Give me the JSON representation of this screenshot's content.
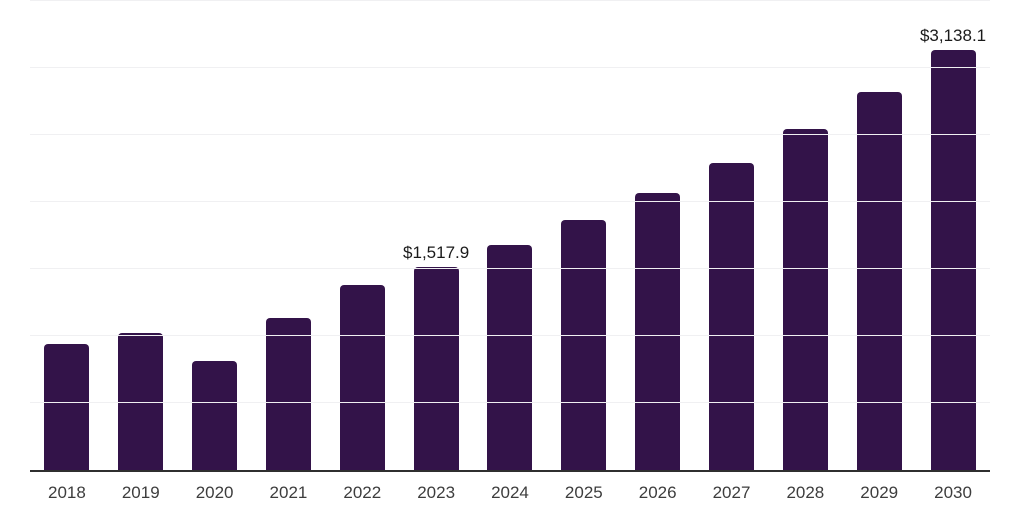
{
  "chart_data": {
    "type": "bar",
    "title": "",
    "xlabel": "",
    "ylabel": "",
    "legend": "none",
    "grid": "horizontal",
    "y_axis_tick_labels_visible": false,
    "categories": [
      "2018",
      "2019",
      "2020",
      "2021",
      "2022",
      "2023",
      "2024",
      "2025",
      "2026",
      "2027",
      "2028",
      "2029",
      "2030"
    ],
    "values": [
      940,
      1020,
      810,
      1135,
      1380,
      1517.9,
      1682,
      1865,
      2067,
      2293,
      2543,
      2822,
      3138.1
    ],
    "value_labels": {
      "2023": "$1,517.9",
      "2030": "$3,138.1"
    },
    "ylim": [
      0,
      3500
    ],
    "grid_interval": 500,
    "colors": {
      "bar": "#331349",
      "grid_line": "#f0f0f2",
      "axis_line": "#2f2f2f",
      "tick_label": "#3d3d3d",
      "value_label": "#1a1a1a",
      "background": "#ffffff"
    }
  }
}
